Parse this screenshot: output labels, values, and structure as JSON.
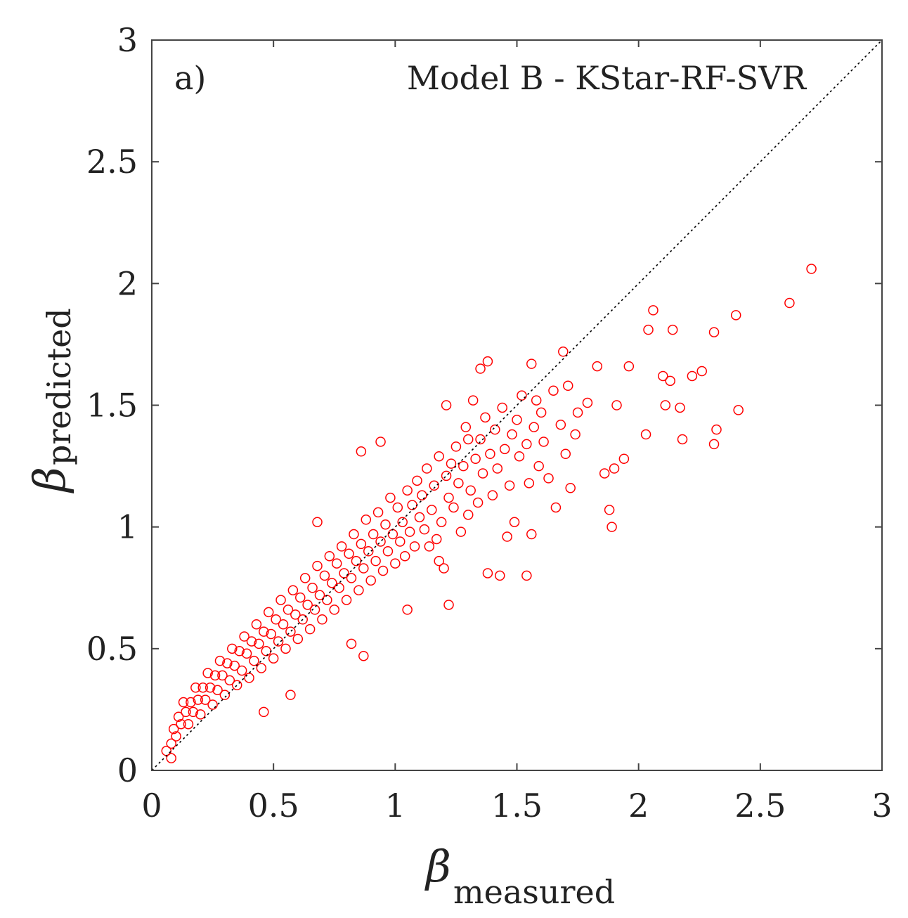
{
  "chart_data": {
    "type": "scatter",
    "panel_label": "a)",
    "title": "Model B - KStar-RF-SVR",
    "xlabel": {
      "symbol": "β",
      "subscript": "measured"
    },
    "ylabel": {
      "symbol": "β",
      "subscript": "predicted"
    },
    "xlim": [
      0,
      3
    ],
    "ylim": [
      0,
      3
    ],
    "xticks": [
      {
        "value": 0,
        "label": "0"
      },
      {
        "value": 0.5,
        "label": "0.5"
      },
      {
        "value": 1,
        "label": "1"
      },
      {
        "value": 1.5,
        "label": "1.5"
      },
      {
        "value": 2,
        "label": "2"
      },
      {
        "value": 2.5,
        "label": "2.5"
      },
      {
        "value": 3,
        "label": "3"
      }
    ],
    "yticks": [
      {
        "value": 0,
        "label": "0"
      },
      {
        "value": 0.5,
        "label": "0.5"
      },
      {
        "value": 1,
        "label": "1"
      },
      {
        "value": 1.5,
        "label": "1.5"
      },
      {
        "value": 2,
        "label": "2"
      },
      {
        "value": 2.5,
        "label": "2.5"
      },
      {
        "value": 3,
        "label": "3"
      }
    ],
    "grid": false,
    "reference_line": {
      "name": "identity line y = x",
      "from": [
        0,
        0
      ],
      "to": [
        3,
        3
      ],
      "style": "dotted",
      "color": "#000000"
    },
    "series": [
      {
        "name": "predicted vs measured",
        "marker": "open-circle",
        "color": "#ff0000",
        "points": [
          [
            2.71,
            2.06
          ],
          [
            2.62,
            1.92
          ],
          [
            2.4,
            1.87
          ],
          [
            2.31,
            1.8
          ],
          [
            2.14,
            1.81
          ],
          [
            2.06,
            1.89
          ],
          [
            2.04,
            1.81
          ],
          [
            2.41,
            1.48
          ],
          [
            2.32,
            1.4
          ],
          [
            2.31,
            1.34
          ],
          [
            2.26,
            1.64
          ],
          [
            2.22,
            1.62
          ],
          [
            2.18,
            1.36
          ],
          [
            2.17,
            1.49
          ],
          [
            2.13,
            1.6
          ],
          [
            2.11,
            1.5
          ],
          [
            2.1,
            1.62
          ],
          [
            2.03,
            1.38
          ],
          [
            1.96,
            1.66
          ],
          [
            1.94,
            1.28
          ],
          [
            1.91,
            1.5
          ],
          [
            1.9,
            1.24
          ],
          [
            1.89,
            1.0
          ],
          [
            1.88,
            1.07
          ],
          [
            1.86,
            1.22
          ],
          [
            1.83,
            1.66
          ],
          [
            1.79,
            1.51
          ],
          [
            1.71,
            1.58
          ],
          [
            1.69,
            1.72
          ],
          [
            1.66,
            1.08
          ],
          [
            1.56,
            1.67
          ],
          [
            1.56,
            0.97
          ],
          [
            1.54,
            0.8
          ],
          [
            1.49,
            1.02
          ],
          [
            1.46,
            0.96
          ],
          [
            1.43,
            0.8
          ],
          [
            1.38,
            0.81
          ],
          [
            1.38,
            1.68
          ],
          [
            1.35,
            1.65
          ],
          [
            1.3,
            1.36
          ],
          [
            1.22,
            0.68
          ],
          [
            1.21,
            1.5
          ],
          [
            1.2,
            0.83
          ],
          [
            1.18,
            0.86
          ],
          [
            1.14,
            0.92
          ],
          [
            1.05,
            0.66
          ],
          [
            0.94,
            1.35
          ],
          [
            0.86,
            1.31
          ],
          [
            0.87,
            0.47
          ],
          [
            0.82,
            0.52
          ],
          [
            0.68,
            1.02
          ],
          [
            0.57,
            0.31
          ],
          [
            0.46,
            0.24
          ],
          [
            0.08,
            0.05
          ],
          [
            0.06,
            0.08
          ],
          [
            1.75,
            1.47
          ],
          [
            1.74,
            1.38
          ],
          [
            1.72,
            1.16
          ],
          [
            1.7,
            1.3
          ],
          [
            1.68,
            1.42
          ],
          [
            1.65,
            1.56
          ],
          [
            1.63,
            1.2
          ],
          [
            1.61,
            1.35
          ],
          [
            1.6,
            1.47
          ],
          [
            1.59,
            1.25
          ],
          [
            1.58,
            1.52
          ],
          [
            1.57,
            1.41
          ],
          [
            1.55,
            1.18
          ],
          [
            1.54,
            1.34
          ],
          [
            1.52,
            1.54
          ],
          [
            1.51,
            1.29
          ],
          [
            1.5,
            1.44
          ],
          [
            1.48,
            1.38
          ],
          [
            1.47,
            1.17
          ],
          [
            1.45,
            1.32
          ],
          [
            1.44,
            1.49
          ],
          [
            1.42,
            1.24
          ],
          [
            1.41,
            1.4
          ],
          [
            1.4,
            1.13
          ],
          [
            1.39,
            1.3
          ],
          [
            1.37,
            1.45
          ],
          [
            1.36,
            1.22
          ],
          [
            1.35,
            1.36
          ],
          [
            1.34,
            1.1
          ],
          [
            1.33,
            1.28
          ],
          [
            1.32,
            1.52
          ],
          [
            1.31,
            1.15
          ],
          [
            1.3,
            1.05
          ],
          [
            1.29,
            1.41
          ],
          [
            1.28,
            1.25
          ],
          [
            1.27,
            0.98
          ],
          [
            1.26,
            1.18
          ],
          [
            1.25,
            1.33
          ],
          [
            1.24,
            1.08
          ],
          [
            1.23,
            1.26
          ],
          [
            1.22,
            1.12
          ],
          [
            1.21,
            1.21
          ],
          [
            1.19,
            1.02
          ],
          [
            1.18,
            1.29
          ],
          [
            1.17,
            0.95
          ],
          [
            1.16,
            1.17
          ],
          [
            1.15,
            1.07
          ],
          [
            1.13,
            1.24
          ],
          [
            1.12,
            0.99
          ],
          [
            1.11,
            1.13
          ],
          [
            1.1,
            1.04
          ],
          [
            1.09,
            1.19
          ],
          [
            1.08,
            0.92
          ],
          [
            1.07,
            1.09
          ],
          [
            1.06,
            0.98
          ],
          [
            1.05,
            1.15
          ],
          [
            1.04,
            0.88
          ],
          [
            1.03,
            1.02
          ],
          [
            1.02,
            0.94
          ],
          [
            1.01,
            1.08
          ],
          [
            1.0,
            0.85
          ],
          [
            0.99,
            0.97
          ],
          [
            0.98,
            1.12
          ],
          [
            0.97,
            0.9
          ],
          [
            0.96,
            1.01
          ],
          [
            0.95,
            0.82
          ],
          [
            0.94,
            0.94
          ],
          [
            0.93,
            1.06
          ],
          [
            0.92,
            0.86
          ],
          [
            0.91,
            0.97
          ],
          [
            0.9,
            0.78
          ],
          [
            0.89,
            0.9
          ],
          [
            0.88,
            1.03
          ],
          [
            0.87,
            0.83
          ],
          [
            0.86,
            0.93
          ],
          [
            0.85,
            0.74
          ],
          [
            0.84,
            0.86
          ],
          [
            0.83,
            0.97
          ],
          [
            0.82,
            0.79
          ],
          [
            0.81,
            0.89
          ],
          [
            0.8,
            0.7
          ],
          [
            0.79,
            0.81
          ],
          [
            0.78,
            0.92
          ],
          [
            0.77,
            0.75
          ],
          [
            0.76,
            0.85
          ],
          [
            0.75,
            0.66
          ],
          [
            0.74,
            0.77
          ],
          [
            0.73,
            0.88
          ],
          [
            0.72,
            0.7
          ],
          [
            0.71,
            0.8
          ],
          [
            0.7,
            0.62
          ],
          [
            0.69,
            0.72
          ],
          [
            0.68,
            0.84
          ],
          [
            0.67,
            0.66
          ],
          [
            0.66,
            0.75
          ],
          [
            0.65,
            0.58
          ],
          [
            0.64,
            0.68
          ],
          [
            0.63,
            0.79
          ],
          [
            0.62,
            0.62
          ],
          [
            0.61,
            0.71
          ],
          [
            0.6,
            0.54
          ],
          [
            0.59,
            0.64
          ],
          [
            0.58,
            0.74
          ],
          [
            0.57,
            0.57
          ],
          [
            0.56,
            0.66
          ],
          [
            0.55,
            0.5
          ],
          [
            0.54,
            0.6
          ],
          [
            0.53,
            0.7
          ],
          [
            0.52,
            0.53
          ],
          [
            0.51,
            0.62
          ],
          [
            0.5,
            0.46
          ],
          [
            0.49,
            0.56
          ],
          [
            0.48,
            0.65
          ],
          [
            0.47,
            0.49
          ],
          [
            0.46,
            0.57
          ],
          [
            0.45,
            0.42
          ],
          [
            0.44,
            0.52
          ],
          [
            0.43,
            0.6
          ],
          [
            0.42,
            0.45
          ],
          [
            0.41,
            0.53
          ],
          [
            0.4,
            0.38
          ],
          [
            0.39,
            0.48
          ],
          [
            0.38,
            0.55
          ],
          [
            0.37,
            0.41
          ],
          [
            0.36,
            0.49
          ],
          [
            0.35,
            0.35
          ],
          [
            0.34,
            0.43
          ],
          [
            0.33,
            0.5
          ],
          [
            0.32,
            0.37
          ],
          [
            0.31,
            0.44
          ],
          [
            0.3,
            0.31
          ],
          [
            0.29,
            0.39
          ],
          [
            0.28,
            0.45
          ],
          [
            0.27,
            0.33
          ],
          [
            0.26,
            0.39
          ],
          [
            0.25,
            0.27
          ],
          [
            0.24,
            0.34
          ],
          [
            0.23,
            0.4
          ],
          [
            0.22,
            0.29
          ],
          [
            0.21,
            0.34
          ],
          [
            0.2,
            0.23
          ],
          [
            0.19,
            0.29
          ],
          [
            0.18,
            0.34
          ],
          [
            0.17,
            0.24
          ],
          [
            0.16,
            0.28
          ],
          [
            0.15,
            0.19
          ],
          [
            0.14,
            0.24
          ],
          [
            0.13,
            0.28
          ],
          [
            0.12,
            0.19
          ],
          [
            0.11,
            0.22
          ],
          [
            0.1,
            0.14
          ],
          [
            0.09,
            0.17
          ],
          [
            0.08,
            0.11
          ]
        ]
      }
    ]
  }
}
